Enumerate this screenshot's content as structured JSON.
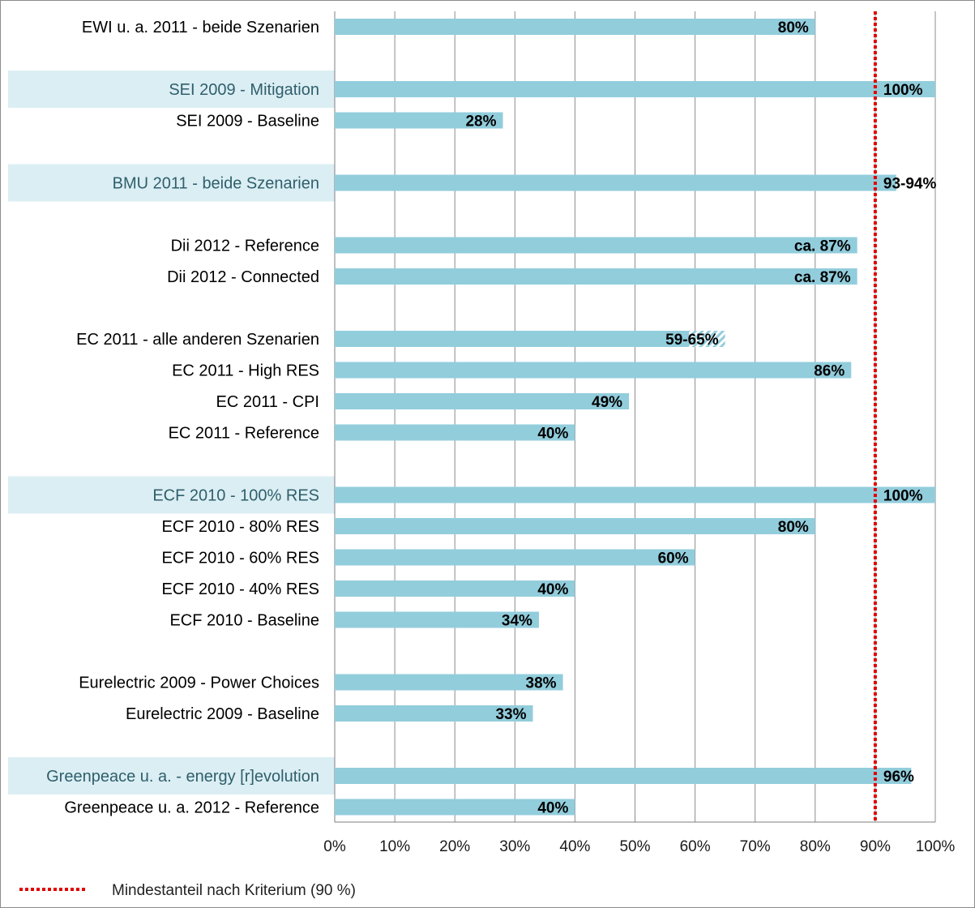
{
  "chart_data": {
    "type": "bar",
    "orientation": "horizontal",
    "xlim": [
      0,
      100
    ],
    "x_ticks": [
      "0%",
      "10%",
      "20%",
      "30%",
      "40%",
      "50%",
      "60%",
      "70%",
      "80%",
      "90%",
      "100%"
    ],
    "grid": "vertical",
    "colors": {
      "bar": "#92cddc",
      "highlight_band": "#dbeef4",
      "highlight_text": "#2f5f6b",
      "text": "#000000",
      "threshold": "#e00000"
    },
    "categories": [
      {
        "label": "EWI u. a. 2011 - beide Szenarien",
        "value": 80,
        "value_label": "80%",
        "highlight": false
      },
      {
        "label": "",
        "value": null,
        "value_label": "",
        "highlight": false
      },
      {
        "label": "SEI 2009 - Mitigation",
        "value": 100,
        "value_label": "100%",
        "highlight": true
      },
      {
        "label": "SEI 2009 - Baseline",
        "value": 28,
        "value_label": "28%",
        "highlight": false
      },
      {
        "label": "",
        "value": null,
        "value_label": "",
        "highlight": false
      },
      {
        "label": "BMU 2011 - beide Szenarien",
        "value": 93.5,
        "value_label": "93-94%",
        "highlight": true
      },
      {
        "label": "",
        "value": null,
        "value_label": "",
        "highlight": false
      },
      {
        "label": "Dii 2012 - Reference",
        "value": 87,
        "value_label": "ca. 87%",
        "highlight": false
      },
      {
        "label": "Dii 2012 - Connected",
        "value": 87,
        "value_label": "ca. 87%",
        "highlight": false
      },
      {
        "label": "",
        "value": null,
        "value_label": "",
        "highlight": false
      },
      {
        "label": "EC 2011 - alle anderen Szenarien",
        "value": 59,
        "range_max": 65,
        "value_label": "59-65%",
        "highlight": false
      },
      {
        "label": "EC 2011 - High RES",
        "value": 86,
        "value_label": "86%",
        "highlight": false
      },
      {
        "label": "EC 2011 - CPI",
        "value": 49,
        "value_label": "49%",
        "highlight": false
      },
      {
        "label": "EC 2011 - Reference",
        "value": 40,
        "value_label": "40%",
        "highlight": false
      },
      {
        "label": "",
        "value": null,
        "value_label": "",
        "highlight": false
      },
      {
        "label": "ECF 2010 - 100% RES",
        "value": 100,
        "value_label": "100%",
        "highlight": true
      },
      {
        "label": "ECF 2010 - 80% RES",
        "value": 80,
        "value_label": "80%",
        "highlight": false
      },
      {
        "label": "ECF 2010 - 60% RES",
        "value": 60,
        "value_label": "60%",
        "highlight": false
      },
      {
        "label": "ECF 2010 - 40% RES",
        "value": 40,
        "value_label": "40%",
        "highlight": false
      },
      {
        "label": "ECF 2010 - Baseline",
        "value": 34,
        "value_label": "34%",
        "highlight": false
      },
      {
        "label": "",
        "value": null,
        "value_label": "",
        "highlight": false
      },
      {
        "label": "Eurelectric 2009 - Power Choices",
        "value": 38,
        "value_label": "38%",
        "highlight": false
      },
      {
        "label": "Eurelectric 2009 - Baseline",
        "value": 33,
        "value_label": "33%",
        "highlight": false
      },
      {
        "label": "",
        "value": null,
        "value_label": "",
        "highlight": false
      },
      {
        "label": "Greenpeace u. a. - energy [r]evolution",
        "value": 96,
        "value_label": "96%",
        "highlight": true
      },
      {
        "label": "Greenpeace u. a. 2012 - Reference",
        "value": 40,
        "value_label": "40%",
        "highlight": false
      }
    ],
    "threshold": {
      "value": 90,
      "label": "Mindestanteil nach Kriterium (90 %)"
    },
    "legend": {
      "position": "bottom-left",
      "entries": [
        "Mindestanteil nach Kriterium (90 %)"
      ]
    }
  }
}
